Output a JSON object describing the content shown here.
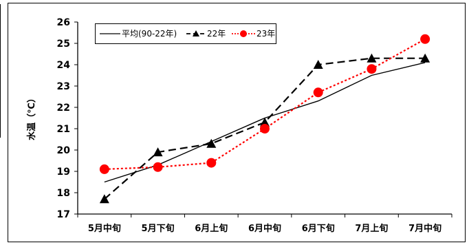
{
  "chart_data": {
    "type": "line",
    "title": "",
    "xlabel": "",
    "ylabel": "水温（℃）",
    "categories": [
      "5月中旬",
      "5月下旬",
      "6月上旬",
      "6月中旬",
      "6月下旬",
      "7月上旬",
      "7月中旬"
    ],
    "ylim": [
      17,
      26
    ],
    "yticks": [
      17,
      18,
      19,
      20,
      21,
      22,
      23,
      24,
      25,
      26
    ],
    "grid": false,
    "legend_position": "top-left",
    "series": [
      {
        "name": "平均(90-22年)",
        "values": [
          18.5,
          19.3,
          20.4,
          21.5,
          22.3,
          23.5,
          24.1
        ],
        "color": "#000000",
        "dash": "solid",
        "marker": "none"
      },
      {
        "name": "22年",
        "values": [
          17.7,
          19.9,
          20.3,
          21.3,
          24.0,
          24.3,
          24.3
        ],
        "color": "#000000",
        "dash": "long-dash",
        "marker": "triangle"
      },
      {
        "name": "23年",
        "values": [
          19.1,
          19.2,
          19.4,
          21.0,
          22.7,
          23.8,
          25.2
        ],
        "color": "#ff0000",
        "dash": "dotted",
        "marker": "circle"
      }
    ]
  }
}
